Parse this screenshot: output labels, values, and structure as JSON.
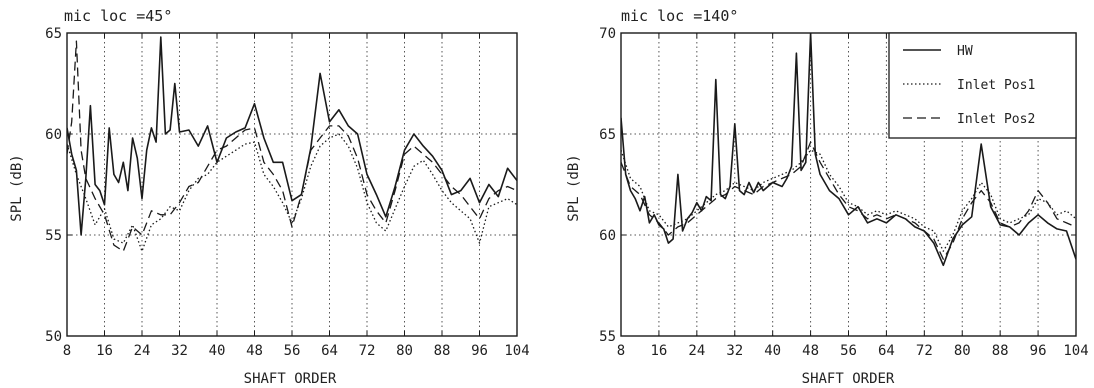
{
  "colors": {
    "ink": "#1a1a1a",
    "grid": "#555555",
    "background": "#ffffff"
  },
  "chart_data": [
    {
      "type": "line",
      "title": "mic loc =45°",
      "xlabel": "SHAFT ORDER",
      "ylabel": "SPL (dB)",
      "xlim": [
        8,
        104
      ],
      "ylim": [
        50,
        65
      ],
      "xticks": [
        8,
        16,
        24,
        32,
        40,
        48,
        56,
        64,
        72,
        80,
        88,
        96,
        104
      ],
      "yticks": [
        50,
        55,
        60,
        65
      ],
      "grid": true,
      "legend": "none",
      "series": [
        {
          "name": "HW",
          "style": "solid",
          "x": [
            8,
            9,
            10,
            11,
            12,
            13,
            14,
            15,
            16,
            17,
            18,
            19,
            20,
            21,
            22,
            23,
            24,
            25,
            26,
            27,
            28,
            29,
            30,
            31,
            32,
            34,
            36,
            38,
            40,
            42,
            44,
            46,
            48,
            50,
            52,
            54,
            56,
            58,
            60,
            62,
            64,
            66,
            68,
            70,
            72,
            74,
            76,
            78,
            80,
            82,
            84,
            86,
            88,
            90,
            92,
            94,
            96,
            98,
            100,
            102,
            104
          ],
          "y": [
            60.3,
            59.0,
            58.2,
            55.0,
            57.8,
            61.4,
            57.5,
            57.2,
            56.5,
            60.3,
            58.0,
            57.6,
            58.6,
            57.2,
            59.8,
            58.8,
            56.8,
            59.2,
            60.3,
            59.6,
            64.8,
            60.0,
            60.2,
            62.5,
            60.1,
            60.2,
            59.4,
            60.4,
            58.6,
            59.8,
            60.1,
            60.3,
            61.5,
            59.8,
            58.6,
            58.6,
            56.7,
            57.0,
            59.3,
            63.0,
            60.6,
            61.2,
            60.4,
            60.0,
            58.0,
            57.0,
            55.9,
            57.4,
            59.2,
            60.0,
            59.4,
            58.9,
            58.2,
            57.0,
            57.2,
            57.8,
            56.6,
            57.5,
            56.9,
            58.3,
            57.7
          ]
        },
        {
          "name": "Inlet Pos1",
          "style": "dotted",
          "x": [
            8,
            10,
            12,
            14,
            16,
            18,
            20,
            22,
            24,
            26,
            28,
            30,
            32,
            34,
            36,
            38,
            40,
            42,
            44,
            46,
            48,
            50,
            52,
            54,
            56,
            58,
            60,
            62,
            64,
            66,
            68,
            70,
            72,
            74,
            76,
            78,
            80,
            82,
            84,
            86,
            88,
            90,
            92,
            94,
            96,
            98,
            100,
            102,
            104
          ],
          "y": [
            59.5,
            58.0,
            56.8,
            55.5,
            56.3,
            54.8,
            54.6,
            55.5,
            54.2,
            55.5,
            55.8,
            56.4,
            56.2,
            57.2,
            57.8,
            58.0,
            58.6,
            58.9,
            59.2,
            59.5,
            59.6,
            58.0,
            57.4,
            56.6,
            55.6,
            56.8,
            58.4,
            59.4,
            59.8,
            60.0,
            59.4,
            58.3,
            56.6,
            55.6,
            55.2,
            56.3,
            57.4,
            58.4,
            58.7,
            58.0,
            57.2,
            56.6,
            56.2,
            55.8,
            54.6,
            56.4,
            56.6,
            56.8,
            56.5
          ]
        },
        {
          "name": "Inlet Pos2",
          "style": "dashed",
          "x": [
            8,
            9,
            10,
            11,
            12,
            14,
            16,
            18,
            20,
            22,
            24,
            26,
            28,
            30,
            32,
            34,
            36,
            38,
            40,
            42,
            44,
            46,
            48,
            50,
            52,
            54,
            56,
            58,
            60,
            62,
            64,
            66,
            68,
            70,
            72,
            74,
            76,
            78,
            80,
            82,
            84,
            86,
            88,
            90,
            92,
            94,
            96,
            98,
            100,
            102,
            104
          ],
          "y": [
            59.0,
            60.6,
            64.6,
            59.2,
            57.8,
            56.8,
            56.0,
            54.5,
            54.2,
            55.4,
            55.0,
            56.2,
            56.0,
            56.0,
            56.6,
            57.4,
            57.6,
            58.4,
            59.2,
            59.4,
            59.8,
            60.2,
            60.3,
            58.6,
            58.0,
            57.2,
            55.4,
            57.0,
            59.2,
            59.8,
            60.4,
            60.4,
            59.9,
            58.8,
            57.0,
            56.2,
            55.6,
            57.2,
            59.0,
            59.4,
            59.0,
            58.6,
            58.0,
            57.4,
            57.0,
            56.4,
            55.8,
            56.8,
            57.2,
            57.4,
            57.2
          ]
        }
      ]
    },
    {
      "type": "line",
      "title": "mic loc =140°",
      "xlabel": "SHAFT ORDER",
      "ylabel": "SPL (dB)",
      "xlim": [
        8,
        104
      ],
      "ylim": [
        55,
        70
      ],
      "xticks": [
        8,
        16,
        24,
        32,
        40,
        48,
        56,
        64,
        72,
        80,
        88,
        96,
        104
      ],
      "yticks": [
        55,
        60,
        65,
        70
      ],
      "grid": true,
      "legend": "top-right",
      "series": [
        {
          "name": "HW",
          "style": "solid",
          "x": [
            8,
            9,
            10,
            11,
            12,
            13,
            14,
            15,
            16,
            17,
            18,
            19,
            20,
            21,
            22,
            23,
            24,
            25,
            26,
            27,
            28,
            29,
            30,
            31,
            32,
            33,
            34,
            35,
            36,
            37,
            38,
            39,
            40,
            41,
            42,
            43,
            44,
            45,
            46,
            47,
            48,
            49,
            50,
            51,
            52,
            54,
            56,
            58,
            60,
            62,
            64,
            66,
            68,
            70,
            72,
            74,
            76,
            78,
            80,
            82,
            84,
            86,
            88,
            90,
            92,
            94,
            96,
            98,
            100,
            102,
            104
          ],
          "y": [
            65.8,
            63.0,
            62.2,
            61.8,
            61.2,
            61.9,
            60.6,
            61.0,
            60.5,
            60.3,
            59.6,
            59.8,
            63.0,
            60.2,
            60.8,
            61.1,
            61.6,
            61.2,
            61.9,
            61.7,
            67.7,
            62.0,
            61.8,
            62.4,
            65.5,
            62.2,
            62.0,
            62.6,
            62.1,
            62.6,
            62.2,
            62.4,
            62.6,
            62.5,
            62.4,
            62.8,
            63.4,
            69.0,
            63.2,
            63.6,
            70.0,
            64.0,
            63.0,
            62.6,
            62.2,
            61.8,
            61.0,
            61.4,
            60.6,
            60.8,
            60.6,
            61.0,
            60.8,
            60.4,
            60.2,
            59.6,
            58.5,
            59.8,
            60.5,
            60.9,
            64.5,
            61.4,
            60.5,
            60.4,
            60.0,
            60.6,
            61.0,
            60.6,
            60.3,
            60.2,
            58.8
          ]
        },
        {
          "name": "Inlet Pos1",
          "style": "dotted",
          "x": [
            8,
            10,
            12,
            14,
            16,
            18,
            20,
            22,
            24,
            26,
            28,
            30,
            32,
            34,
            36,
            38,
            40,
            42,
            44,
            46,
            48,
            50,
            52,
            54,
            56,
            58,
            60,
            62,
            64,
            66,
            68,
            70,
            72,
            74,
            76,
            78,
            80,
            82,
            84,
            86,
            88,
            90,
            92,
            94,
            96,
            98,
            100,
            102,
            104
          ],
          "y": [
            64.2,
            62.8,
            62.4,
            61.2,
            61.0,
            60.4,
            60.6,
            60.8,
            61.2,
            61.6,
            62.0,
            62.2,
            62.6,
            62.4,
            62.2,
            62.6,
            62.8,
            63.0,
            63.2,
            63.6,
            64.2,
            64.0,
            63.0,
            62.4,
            61.6,
            61.4,
            61.0,
            61.2,
            61.0,
            61.2,
            61.0,
            60.8,
            60.4,
            60.2,
            59.2,
            60.0,
            61.2,
            61.8,
            62.6,
            62.0,
            60.8,
            60.6,
            60.8,
            61.0,
            61.8,
            61.6,
            61.0,
            61.2,
            60.8
          ]
        },
        {
          "name": "Inlet Pos2",
          "style": "dashed",
          "x": [
            8,
            10,
            12,
            14,
            16,
            18,
            20,
            22,
            24,
            26,
            28,
            30,
            32,
            34,
            36,
            38,
            40,
            42,
            44,
            46,
            48,
            50,
            52,
            54,
            56,
            58,
            60,
            62,
            64,
            66,
            68,
            70,
            72,
            74,
            76,
            78,
            80,
            82,
            84,
            86,
            88,
            90,
            92,
            94,
            96,
            98,
            100,
            102,
            104
          ],
          "y": [
            63.6,
            62.4,
            62.0,
            61.0,
            60.6,
            60.0,
            60.4,
            60.6,
            61.0,
            61.4,
            61.8,
            62.0,
            62.4,
            62.2,
            62.0,
            62.4,
            62.6,
            62.8,
            63.0,
            63.4,
            64.6,
            63.6,
            62.8,
            62.0,
            61.4,
            61.2,
            60.8,
            61.0,
            60.8,
            61.0,
            60.8,
            60.6,
            60.2,
            59.8,
            58.8,
            59.6,
            60.8,
            61.6,
            62.2,
            61.6,
            60.6,
            60.4,
            60.6,
            61.2,
            62.2,
            61.6,
            60.8,
            60.6,
            60.4
          ]
        }
      ]
    }
  ]
}
